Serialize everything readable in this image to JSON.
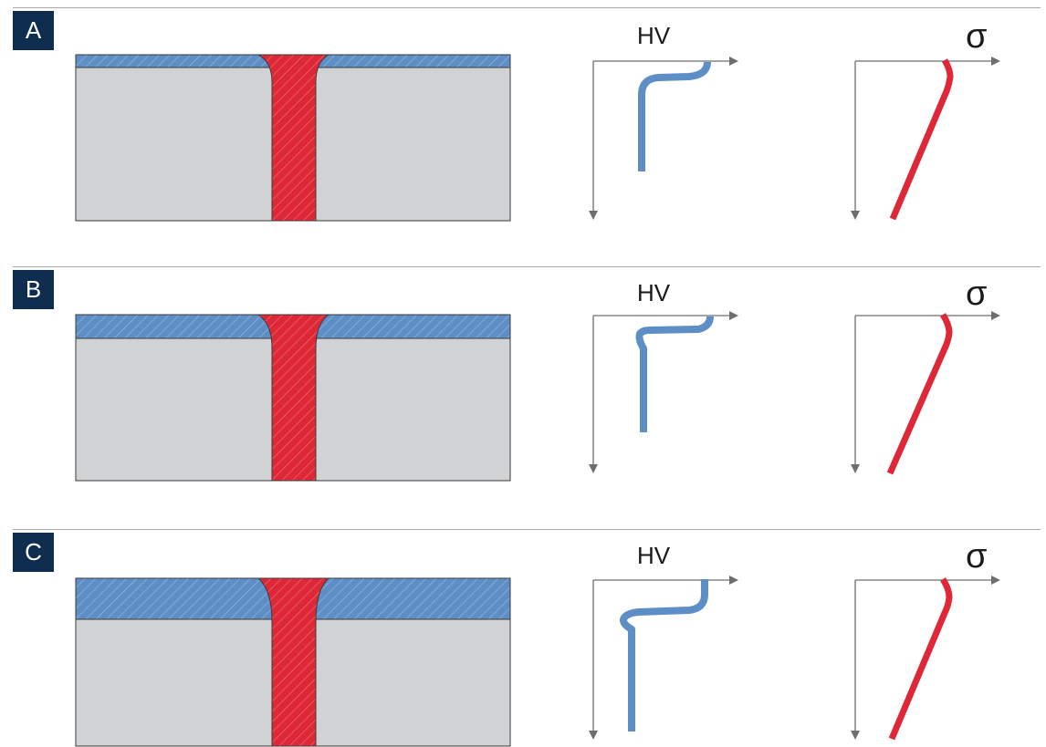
{
  "colors": {
    "label_bg": "#0f2d4f",
    "substrate": "#d1d2d4",
    "coating": "#5d8ec5",
    "weld": "#de2837",
    "hv_curve": "#5d8ec5",
    "stress_curve": "#de2837",
    "axis": "#6e6e6e"
  },
  "icons": [
    "arrow-right-icon",
    "arrow-down-icon"
  ],
  "panels": [
    {
      "label": "A",
      "hv_label": "HV",
      "stress_label": "σ"
    },
    {
      "label": "B",
      "hv_label": "HV",
      "stress_label": "σ"
    },
    {
      "label": "C",
      "hv_label": "HV",
      "stress_label": "σ"
    }
  ]
}
